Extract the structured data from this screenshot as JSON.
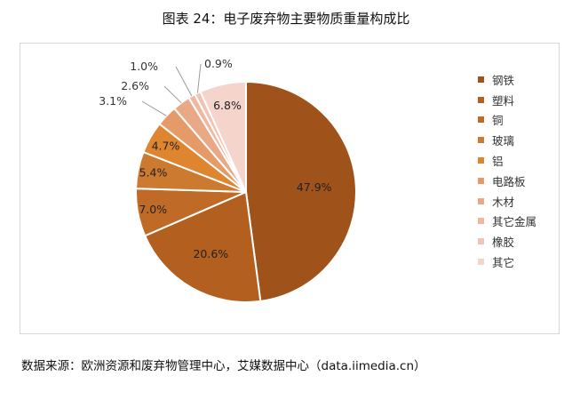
{
  "title": "图表 24：电子废弃物主要物质重量构成比",
  "source": "数据来源：欧洲资源和废弃物管理中心，艾媒数据中心（data.iimedia.cn）",
  "chart_data": {
    "type": "pie",
    "title": "图表 24：电子废弃物主要物质重量构成比",
    "legend_position": "right",
    "categories": [
      "钢铁",
      "塑料",
      "铜",
      "玻璃",
      "铝",
      "电路板",
      "木材",
      "其它金属",
      "橡胶",
      "其它"
    ],
    "values": [
      47.9,
      20.6,
      7.0,
      5.4,
      4.7,
      3.1,
      2.6,
      1.0,
      0.9,
      6.8
    ],
    "labels": [
      "47.9%",
      "20.6%",
      "7.0%",
      "5.4%",
      "4.7%",
      "3.1%",
      "2.6%",
      "1.0%",
      "0.9%",
      "6.8%"
    ],
    "colors": [
      "#a0521b",
      "#b25f20",
      "#c06a28",
      "#cc7a30",
      "#e0852f",
      "#e59a68",
      "#e9a987",
      "#f0b79e",
      "#f2c3b4",
      "#f4d4cb"
    ]
  }
}
